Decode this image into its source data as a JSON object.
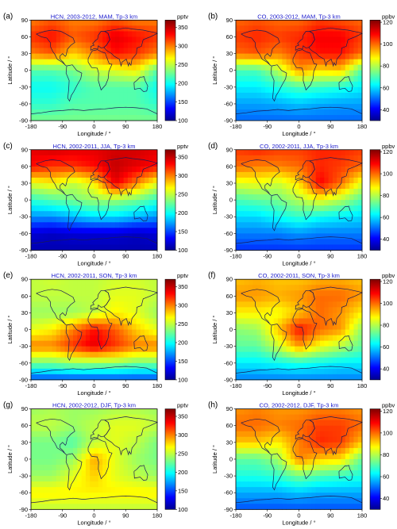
{
  "figure": {
    "panels": [
      {
        "tag": "(a)",
        "title": "HCN, 2003-2012, MAM, Tp-3 km",
        "unit": "pptv",
        "cbar_ticks": [
          "350",
          "300",
          "250",
          "200",
          "150",
          "100"
        ],
        "cbar_range": [
          100,
          370
        ],
        "season": "MAM",
        "species": "HCN"
      },
      {
        "tag": "(b)",
        "title": "CO, 2003-2012, MAM, Tp-3 km",
        "unit": "ppbv",
        "cbar_ticks": [
          "120",
          "100",
          "80",
          "60",
          "40"
        ],
        "cbar_range": [
          30,
          122
        ],
        "season": "MAM",
        "species": "CO"
      },
      {
        "tag": "(c)",
        "title": "HCN, 2002-2011, JJA, Tp-3 km",
        "unit": "pptv",
        "cbar_ticks": [
          "350",
          "300",
          "250",
          "200",
          "150",
          "100"
        ],
        "cbar_range": [
          100,
          370
        ],
        "season": "JJA",
        "species": "HCN"
      },
      {
        "tag": "(d)",
        "title": "CO, 2002-2011, JJA, Tp-3 km",
        "unit": "ppbv",
        "cbar_ticks": [
          "120",
          "100",
          "80",
          "60",
          "40"
        ],
        "cbar_range": [
          30,
          122
        ],
        "season": "JJA",
        "species": "CO"
      },
      {
        "tag": "(e)",
        "title": "HCN, 2002-2011, SON, Tp-3 km",
        "unit": "pptv",
        "cbar_ticks": [
          "350",
          "300",
          "250",
          "200",
          "150",
          "100"
        ],
        "cbar_range": [
          100,
          370
        ],
        "season": "SON",
        "species": "HCN"
      },
      {
        "tag": "(f)",
        "title": "CO, 2002-2011, SON, Tp-3 km",
        "unit": "ppbv",
        "cbar_ticks": [
          "120",
          "100",
          "80",
          "60",
          "40"
        ],
        "cbar_range": [
          30,
          122
        ],
        "season": "SON",
        "species": "CO"
      },
      {
        "tag": "(g)",
        "title": "HCN, 2002-2012, DJF, Tp-3 km",
        "unit": "pptv",
        "cbar_ticks": [
          "350",
          "300",
          "250",
          "200",
          "150",
          "100"
        ],
        "cbar_range": [
          100,
          370
        ],
        "season": "DJF",
        "species": "HCN"
      },
      {
        "tag": "(h)",
        "title": "CO, 2002-2012, DJF, Tp-3 km",
        "unit": "ppbv",
        "cbar_ticks": [
          "120",
          "100",
          "80",
          "60",
          "40"
        ],
        "cbar_range": [
          30,
          122
        ],
        "season": "DJF",
        "species": "CO"
      }
    ],
    "xlabel": "Longitude / °",
    "ylabel": "Latitude / °",
    "x_ticks": [
      "-180",
      "-90",
      "0",
      "90",
      "180"
    ],
    "y_ticks": [
      "90",
      "60",
      "30",
      "0",
      "-30",
      "-60",
      "-90"
    ],
    "colors": {
      "frame": "#000000",
      "title_color": "#1a1acc",
      "coast": "#1a1a55"
    }
  },
  "chart_data": [
    {
      "type": "heatmap",
      "title": "HCN, 2003-2012, MAM, Tp-3 km",
      "xlabel": "Longitude / °",
      "ylabel": "Latitude / °",
      "xlim": [
        -180,
        180
      ],
      "ylim": [
        -90,
        90
      ],
      "x": [
        -180,
        -120,
        -60,
        0,
        60,
        120,
        180
      ],
      "y": [
        90,
        60,
        30,
        0,
        -30,
        -60,
        -90
      ],
      "values": [
        [
          300,
          310,
          300,
          300,
          310,
          300,
          300
        ],
        [
          320,
          330,
          310,
          320,
          340,
          330,
          320
        ],
        [
          300,
          310,
          280,
          300,
          330,
          320,
          300
        ],
        [
          220,
          220,
          230,
          250,
          260,
          270,
          220
        ],
        [
          200,
          200,
          210,
          220,
          220,
          220,
          200
        ],
        [
          210,
          210,
          220,
          220,
          220,
          220,
          210
        ],
        [
          230,
          230,
          230,
          230,
          230,
          230,
          230
        ]
      ],
      "colorbar_label": "pptv",
      "colorbar_range": [
        100,
        370
      ]
    },
    {
      "type": "heatmap",
      "title": "CO, 2003-2012, MAM, Tp-3 km",
      "xlabel": "Longitude / °",
      "ylabel": "Latitude / °",
      "xlim": [
        -180,
        180
      ],
      "ylim": [
        -90,
        90
      ],
      "x": [
        -180,
        -120,
        -60,
        0,
        60,
        120,
        180
      ],
      "y": [
        90,
        60,
        30,
        0,
        -30,
        -60,
        -90
      ],
      "values": [
        [
          100,
          102,
          100,
          100,
          104,
          102,
          100
        ],
        [
          104,
          106,
          104,
          106,
          110,
          110,
          104
        ],
        [
          100,
          102,
          98,
          104,
          108,
          108,
          100
        ],
        [
          70,
          70,
          80,
          96,
          90,
          92,
          70
        ],
        [
          62,
          62,
          66,
          70,
          68,
          66,
          62
        ],
        [
          55,
          55,
          56,
          58,
          56,
          55,
          55
        ],
        [
          50,
          50,
          50,
          50,
          50,
          50,
          50
        ]
      ],
      "colorbar_label": "ppbv",
      "colorbar_range": [
        30,
        122
      ]
    },
    {
      "type": "heatmap",
      "title": "HCN, 2002-2011, JJA, Tp-3 km",
      "xlabel": "Longitude / °",
      "ylabel": "Latitude / °",
      "xlim": [
        -180,
        180
      ],
      "ylim": [
        -90,
        90
      ],
      "x": [
        -180,
        -120,
        -60,
        0,
        60,
        120,
        180
      ],
      "y": [
        90,
        60,
        30,
        0,
        -30,
        -60,
        -90
      ],
      "values": [
        [
          340,
          345,
          340,
          340,
          345,
          345,
          340
        ],
        [
          330,
          320,
          320,
          330,
          350,
          340,
          330
        ],
        [
          260,
          270,
          250,
          270,
          340,
          300,
          260
        ],
        [
          210,
          220,
          230,
          240,
          240,
          230,
          210
        ],
        [
          170,
          170,
          180,
          190,
          190,
          180,
          170
        ],
        [
          120,
          115,
          120,
          120,
          120,
          115,
          120
        ],
        [
          110,
          110,
          110,
          110,
          110,
          110,
          110
        ]
      ],
      "colorbar_label": "pptv",
      "colorbar_range": [
        100,
        370
      ]
    },
    {
      "type": "heatmap",
      "title": "CO, 2002-2011, JJA, Tp-3 km",
      "xlabel": "Longitude / °",
      "ylabel": "Latitude / °",
      "xlim": [
        -180,
        180
      ],
      "ylim": [
        -90,
        90
      ],
      "x": [
        -180,
        -120,
        -60,
        0,
        60,
        120,
        180
      ],
      "y": [
        90,
        60,
        30,
        0,
        -30,
        -60,
        -90
      ],
      "values": [
        [
          104,
          106,
          104,
          104,
          106,
          106,
          104
        ],
        [
          100,
          98,
          98,
          100,
          106,
          104,
          100
        ],
        [
          84,
          86,
          82,
          90,
          110,
          100,
          84
        ],
        [
          70,
          72,
          74,
          80,
          86,
          80,
          70
        ],
        [
          60,
          60,
          64,
          68,
          64,
          62,
          60
        ],
        [
          52,
          52,
          52,
          54,
          52,
          52,
          52
        ],
        [
          45,
          45,
          45,
          45,
          45,
          45,
          45
        ]
      ],
      "colorbar_label": "ppbv",
      "colorbar_range": [
        30,
        122
      ]
    },
    {
      "type": "heatmap",
      "title": "HCN, 2002-2011, SON, Tp-3 km",
      "xlabel": "Longitude / °",
      "ylabel": "Latitude / °",
      "xlim": [
        -180,
        180
      ],
      "ylim": [
        -90,
        90
      ],
      "x": [
        -180,
        -120,
        -60,
        0,
        60,
        120,
        180
      ],
      "y": [
        90,
        60,
        30,
        0,
        -30,
        -60,
        -90
      ],
      "values": [
        [
          250,
          255,
          250,
          250,
          255,
          255,
          250
        ],
        [
          250,
          250,
          250,
          250,
          260,
          260,
          250
        ],
        [
          240,
          240,
          240,
          250,
          270,
          260,
          240
        ],
        [
          260,
          270,
          300,
          330,
          310,
          280,
          260
        ],
        [
          300,
          300,
          320,
          340,
          320,
          300,
          300
        ],
        [
          230,
          230,
          240,
          240,
          240,
          230,
          230
        ],
        [
          150,
          150,
          150,
          150,
          150,
          150,
          150
        ]
      ],
      "colorbar_label": "pptv",
      "colorbar_range": [
        100,
        370
      ]
    },
    {
      "type": "heatmap",
      "title": "CO, 2002-2011, SON, Tp-3 km",
      "xlabel": "Longitude / °",
      "ylabel": "Latitude / °",
      "xlim": [
        -180,
        180
      ],
      "ylim": [
        -90,
        90
      ],
      "x": [
        -180,
        -120,
        -60,
        0,
        60,
        120,
        180
      ],
      "y": [
        90,
        60,
        30,
        0,
        -30,
        -60,
        -90
      ],
      "values": [
        [
          92,
          94,
          92,
          92,
          94,
          94,
          92
        ],
        [
          96,
          96,
          94,
          96,
          100,
          100,
          96
        ],
        [
          88,
          88,
          86,
          92,
          100,
          96,
          88
        ],
        [
          76,
          78,
          92,
          108,
          100,
          96,
          76
        ],
        [
          72,
          72,
          82,
          96,
          86,
          80,
          72
        ],
        [
          62,
          62,
          64,
          66,
          64,
          62,
          62
        ],
        [
          52,
          52,
          52,
          52,
          52,
          52,
          52
        ]
      ],
      "colorbar_label": "ppbv",
      "colorbar_range": [
        30,
        122
      ]
    },
    {
      "type": "heatmap",
      "title": "HCN, 2002-2012, DJF, Tp-3 km",
      "xlabel": "Longitude / °",
      "ylabel": "Latitude / °",
      "xlim": [
        -180,
        180
      ],
      "ylim": [
        -90,
        90
      ],
      "x": [
        -180,
        -120,
        -60,
        0,
        60,
        120,
        180
      ],
      "y": [
        90,
        60,
        30,
        0,
        -30,
        -60,
        -90
      ],
      "values": [
        [
          240,
          245,
          240,
          240,
          245,
          245,
          240
        ],
        [
          250,
          250,
          240,
          250,
          260,
          260,
          250
        ],
        [
          230,
          230,
          220,
          250,
          260,
          250,
          230
        ],
        [
          230,
          230,
          240,
          290,
          260,
          240,
          230
        ],
        [
          240,
          240,
          260,
          280,
          260,
          250,
          240
        ],
        [
          270,
          270,
          270,
          270,
          270,
          270,
          270
        ],
        [
          250,
          250,
          250,
          250,
          250,
          250,
          250
        ]
      ],
      "colorbar_label": "pptv",
      "colorbar_range": [
        100,
        370
      ]
    },
    {
      "type": "heatmap",
      "title": "CO, 2002-2012, DJF, Tp-3 km",
      "xlabel": "Longitude / °",
      "ylabel": "Latitude / °",
      "xlim": [
        -180,
        180
      ],
      "ylim": [
        -90,
        90
      ],
      "x": [
        -180,
        -120,
        -60,
        0,
        60,
        120,
        180
      ],
      "y": [
        90,
        60,
        30,
        0,
        -30,
        -60,
        -90
      ],
      "values": [
        [
          96,
          98,
          96,
          96,
          98,
          98,
          96
        ],
        [
          100,
          100,
          98,
          100,
          104,
          104,
          100
        ],
        [
          92,
          92,
          88,
          98,
          106,
          104,
          92
        ],
        [
          72,
          72,
          78,
          98,
          92,
          90,
          72
        ],
        [
          66,
          66,
          68,
          74,
          70,
          68,
          66
        ],
        [
          56,
          56,
          56,
          58,
          56,
          56,
          56
        ],
        [
          48,
          48,
          48,
          48,
          48,
          48,
          48
        ]
      ],
      "colorbar_label": "ppbv",
      "colorbar_range": [
        30,
        122
      ]
    }
  ]
}
